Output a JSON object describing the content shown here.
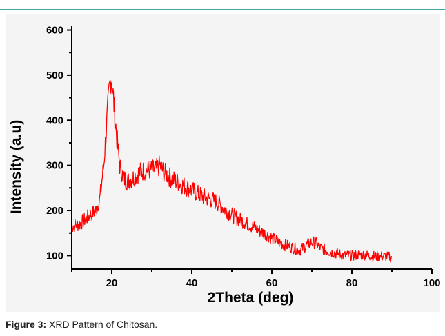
{
  "caption": {
    "label": "Figure 3:",
    "text": "XRD Pattern of Chitosan."
  },
  "colors": {
    "accent_rule": "#3fa6a3",
    "series": "#ff0000",
    "axis": "#000000",
    "panel": "#f4f4f4"
  },
  "chart_data": {
    "type": "line",
    "title": "",
    "xlabel": "2Theta (deg)",
    "ylabel": "Intensity (a.u)",
    "xlim": [
      10,
      100
    ],
    "ylim": [
      70,
      610
    ],
    "xticks": [
      20,
      40,
      60,
      80,
      100
    ],
    "yticks": [
      100,
      200,
      300,
      400,
      500,
      600
    ],
    "grid": false,
    "legend": "none",
    "series": [
      {
        "x": [
          10,
          12,
          14,
          16,
          17,
          18,
          18.8,
          19.4,
          19.8,
          20.3,
          20.8,
          21.5,
          22,
          23,
          24,
          25,
          27,
          29,
          31,
          32,
          33,
          35,
          37,
          40,
          43,
          46,
          48,
          50,
          53,
          56,
          59,
          62,
          65,
          67,
          68,
          69,
          70,
          71,
          72,
          74,
          76,
          78,
          80,
          82,
          84,
          86,
          88,
          90
        ],
        "y": [
          165,
          170,
          185,
          200,
          225,
          300,
          400,
          470,
          500,
          460,
          410,
          340,
          300,
          270,
          265,
          270,
          285,
          290,
          290,
          300,
          285,
          270,
          260,
          245,
          230,
          220,
          205,
          190,
          175,
          160,
          145,
          128,
          118,
          112,
          118,
          125,
          130,
          128,
          118,
          110,
          105,
          100,
          100,
          102,
          100,
          98,
          98,
          97
        ]
      }
    ]
  }
}
